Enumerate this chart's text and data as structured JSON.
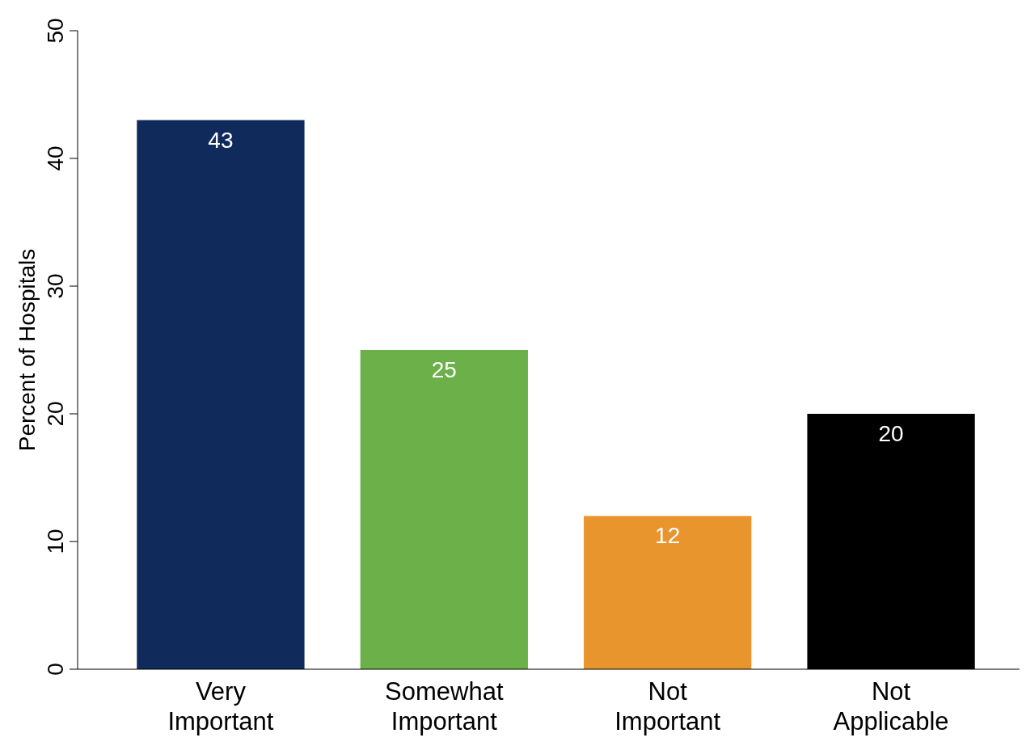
{
  "chart_data": {
    "type": "bar",
    "ylabel": "Percent of Hospitals",
    "categories": [
      "Very Important",
      "Somewhat Important",
      "Not Important",
      "Not Applicable"
    ],
    "values": [
      43,
      25,
      12,
      20
    ],
    "colors": [
      "#102a5c",
      "#6cb04a",
      "#e8952e",
      "#000000"
    ],
    "ylim": [
      0,
      50
    ],
    "yticks": [
      0,
      10,
      20,
      30,
      40,
      50
    ],
    "grid": false,
    "data_labels": true
  }
}
